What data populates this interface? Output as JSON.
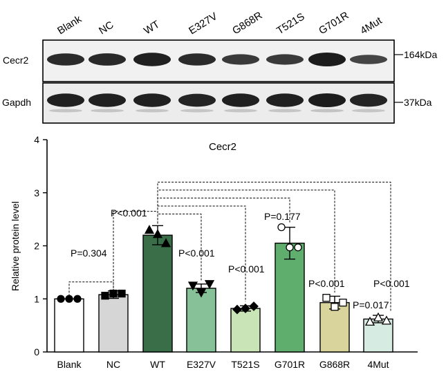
{
  "blot": {
    "lanes": [
      "Blank",
      "NC",
      "WT",
      "E327V",
      "G868R",
      "T521S",
      "G701R",
      "4Mut"
    ],
    "rows": [
      {
        "label": "Cecr2",
        "marker": "164kDa"
      },
      {
        "label": "Gapdh",
        "marker": "37kDa"
      }
    ],
    "band_intensity": {
      "Cecr2": [
        0.8,
        0.82,
        0.95,
        0.8,
        0.6,
        0.6,
        1.0,
        0.45
      ],
      "Gapdh": [
        0.95,
        0.95,
        0.95,
        0.9,
        0.95,
        0.95,
        1.0,
        0.9
      ]
    }
  },
  "chart_data": {
    "type": "bar",
    "title": "Cecr2",
    "xlabel": "",
    "ylabel": "Relative protein level",
    "ylim": [
      0,
      4
    ],
    "yticks": [
      "0",
      "1",
      "2",
      "3",
      "4"
    ],
    "categories": [
      "Blank",
      "NC",
      "WT",
      "E327V",
      "T521S",
      "G701R",
      "G868R",
      "4Mut"
    ],
    "values": [
      1.0,
      1.08,
      2.2,
      1.2,
      0.82,
      2.05,
      0.93,
      0.62
    ],
    "errors": [
      0.0,
      0.07,
      0.18,
      0.08,
      0.05,
      0.3,
      0.12,
      0.07
    ],
    "points": [
      [
        1.0,
        1.0,
        1.0
      ],
      [
        1.06,
        1.1,
        1.1
      ],
      [
        2.3,
        2.22,
        2.05
      ],
      [
        1.25,
        1.12,
        1.28
      ],
      [
        0.8,
        0.82,
        0.86
      ],
      [
        2.35,
        1.97,
        1.97
      ],
      [
        1.02,
        0.85,
        0.93
      ],
      [
        0.57,
        0.65,
        0.59
      ]
    ],
    "markers": [
      "circle",
      "square",
      "triangle",
      "triangle-down",
      "diamond",
      "open-circle",
      "open-square",
      "open-triangle"
    ],
    "colors": [
      "#ffffff",
      "#d6d6d6",
      "#3a6e48",
      "#86c197",
      "#c9e4b6",
      "#5fae6e",
      "#d8d49c",
      "#d6ece2"
    ],
    "annotations": [
      {
        "text": "P=0.304"
      },
      {
        "text": "P<0.001"
      },
      {
        "text": "P<0.001"
      },
      {
        "text": "P<0.001"
      },
      {
        "text": "P=0.177"
      },
      {
        "text": "P<0.001"
      },
      {
        "text": "P<0.001"
      },
      {
        "text": "P=0.017"
      }
    ]
  }
}
